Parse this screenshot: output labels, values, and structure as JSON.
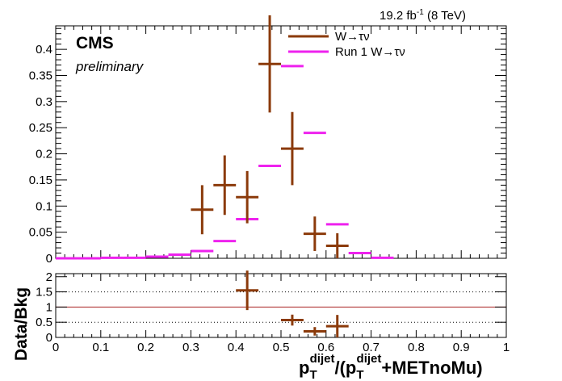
{
  "header": {
    "lumi_value": "19.2 fb",
    "lumi_exp": "-1",
    "lumi_energy": " (8 TeV)"
  },
  "labels": {
    "experiment": "CMS",
    "status": "preliminary",
    "ratio_ylabel": "Data/Bkg",
    "xlabel_main": "p",
    "xlabel_sub": "T",
    "xlabel_sup": "dijet",
    "xlabel_mid": "/(p",
    "xlabel_sub2": "T",
    "xlabel_sup2": "dijet",
    "xlabel_tail": "+METnoMu)"
  },
  "chart_data": [
    {
      "type": "scatter",
      "panel": "main",
      "xlim": [
        0,
        1
      ],
      "ylim": [
        0,
        0.445
      ],
      "x_ticks": [
        "0",
        "0.1",
        "0.2",
        "0.3",
        "0.4",
        "0.5",
        "0.6",
        "0.7",
        "0.8",
        "0.9",
        "1"
      ],
      "y_ticks": [
        "0",
        "0.05",
        "0.1",
        "0.15",
        "0.2",
        "0.25",
        "0.3",
        "0.35",
        "0.4"
      ],
      "legend_position": "top-right",
      "series": [
        {
          "name": "W→τν",
          "color": "#8B3A0A",
          "points": [
            {
              "x": 0.325,
              "y": 0.093,
              "xerr": 0.025,
              "yerr": 0.047
            },
            {
              "x": 0.375,
              "y": 0.14,
              "xerr": 0.025,
              "yerr": 0.057
            },
            {
              "x": 0.425,
              "y": 0.117,
              "xerr": 0.025,
              "yerr": 0.05
            },
            {
              "x": 0.475,
              "y": 0.372,
              "xerr": 0.025,
              "yerr": 0.093
            },
            {
              "x": 0.525,
              "y": 0.21,
              "xerr": 0.025,
              "yerr": 0.07
            },
            {
              "x": 0.575,
              "y": 0.047,
              "xerr": 0.025,
              "yerr": 0.033
            },
            {
              "x": 0.625,
              "y": 0.024,
              "xerr": 0.025,
              "yerr": 0.024
            }
          ]
        },
        {
          "name": "Run 1 W→τν",
          "color": "#EE22EE",
          "points": [
            {
              "x": 0.025,
              "y": 0.0,
              "xerr": 0.025,
              "yerr": 0
            },
            {
              "x": 0.075,
              "y": 0.0,
              "xerr": 0.025,
              "yerr": 0
            },
            {
              "x": 0.125,
              "y": 0.001,
              "xerr": 0.025,
              "yerr": 0
            },
            {
              "x": 0.175,
              "y": 0.001,
              "xerr": 0.025,
              "yerr": 0
            },
            {
              "x": 0.225,
              "y": 0.003,
              "xerr": 0.025,
              "yerr": 0
            },
            {
              "x": 0.275,
              "y": 0.007,
              "xerr": 0.025,
              "yerr": 0
            },
            {
              "x": 0.325,
              "y": 0.014,
              "xerr": 0.025,
              "yerr": 0.001
            },
            {
              "x": 0.375,
              "y": 0.033,
              "xerr": 0.025,
              "yerr": 0.001
            },
            {
              "x": 0.425,
              "y": 0.075,
              "xerr": 0.025,
              "yerr": 0.002
            },
            {
              "x": 0.475,
              "y": 0.177,
              "xerr": 0.025,
              "yerr": 0.002
            },
            {
              "x": 0.525,
              "y": 0.368,
              "xerr": 0.025,
              "yerr": 0.002
            },
            {
              "x": 0.575,
              "y": 0.24,
              "xerr": 0.025,
              "yerr": 0.002
            },
            {
              "x": 0.625,
              "y": 0.065,
              "xerr": 0.025,
              "yerr": 0.001
            },
            {
              "x": 0.675,
              "y": 0.01,
              "xerr": 0.025,
              "yerr": 0
            },
            {
              "x": 0.725,
              "y": 0.001,
              "xerr": 0.025,
              "yerr": 0
            }
          ]
        }
      ]
    },
    {
      "type": "scatter",
      "panel": "ratio",
      "xlim": [
        0,
        1
      ],
      "ylim": [
        0,
        2.1
      ],
      "x_ticks": [
        "0",
        "0.1",
        "0.2",
        "0.3",
        "0.4",
        "0.5",
        "0.6",
        "0.7",
        "0.8",
        "0.9",
        "1"
      ],
      "y_ticks": [
        "0",
        "0.5",
        "1",
        "1.5",
        "2"
      ],
      "reference_lines": [
        {
          "y": 1.0,
          "style": "solid",
          "color": "#aa2222"
        },
        {
          "y": 0.5,
          "style": "dotted",
          "color": "#000000"
        },
        {
          "y": 1.5,
          "style": "dotted",
          "color": "#000000"
        }
      ],
      "series": [
        {
          "color": "#8B3A0A",
          "points": [
            {
              "x": 0.425,
              "y": 1.55,
              "xerr": 0.025,
              "yerr": 0.65
            },
            {
              "x": 0.525,
              "y": 0.57,
              "xerr": 0.025,
              "yerr": 0.18
            },
            {
              "x": 0.575,
              "y": 0.2,
              "xerr": 0.025,
              "yerr": 0.14
            },
            {
              "x": 0.625,
              "y": 0.37,
              "xerr": 0.025,
              "yerr": 0.37
            }
          ]
        }
      ]
    }
  ]
}
